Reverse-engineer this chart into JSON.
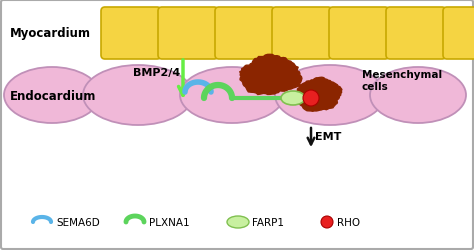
{
  "background_color": "#ffffff",
  "border_color": "#aaaaaa",
  "myocardium_label": "Myocardium",
  "endocardium_label": "Endocardium",
  "bmp_label": "BMP2/4",
  "emt_label": "EMT",
  "mesenchymal_label": "Mesenchymal\ncells",
  "legend_items": [
    "SEMA6D",
    "PLXNA1",
    "FARP1",
    "RHO"
  ],
  "myocardium_color": "#f5d442",
  "myocardium_border": "#c8a800",
  "endocardium_cell_color": "#f0b8d8",
  "endocardium_cell_border": "#c090b8",
  "sema6d_color": "#5ab4e8",
  "plxna1_color": "#5cd45c",
  "farp1_color": "#c8f0a0",
  "farp1_border": "#80c050",
  "rho_color": "#e82020",
  "rho_border": "#aa0000",
  "arrow_color": "#66ee44",
  "emt_arrow_color": "#111111",
  "mesenchymal_color": "#8b2500",
  "fig_w": 4.74,
  "fig_h": 2.51,
  "dpi": 100
}
